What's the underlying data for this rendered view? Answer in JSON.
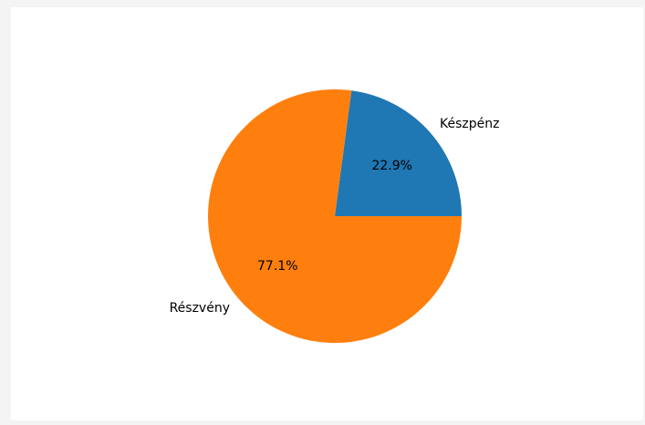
{
  "chart_data": {
    "type": "pie",
    "title": "",
    "slices": [
      {
        "label": "Készpénz",
        "value": 22.9,
        "pct_label": "22.9%",
        "color": "#1f77b4"
      },
      {
        "label": "Részvény",
        "value": 77.1,
        "pct_label": "77.1%",
        "color": "#ff7f0e"
      }
    ],
    "start_angle": "0 degrees (3 o'clock), counter-clockwise",
    "legend": "none"
  }
}
